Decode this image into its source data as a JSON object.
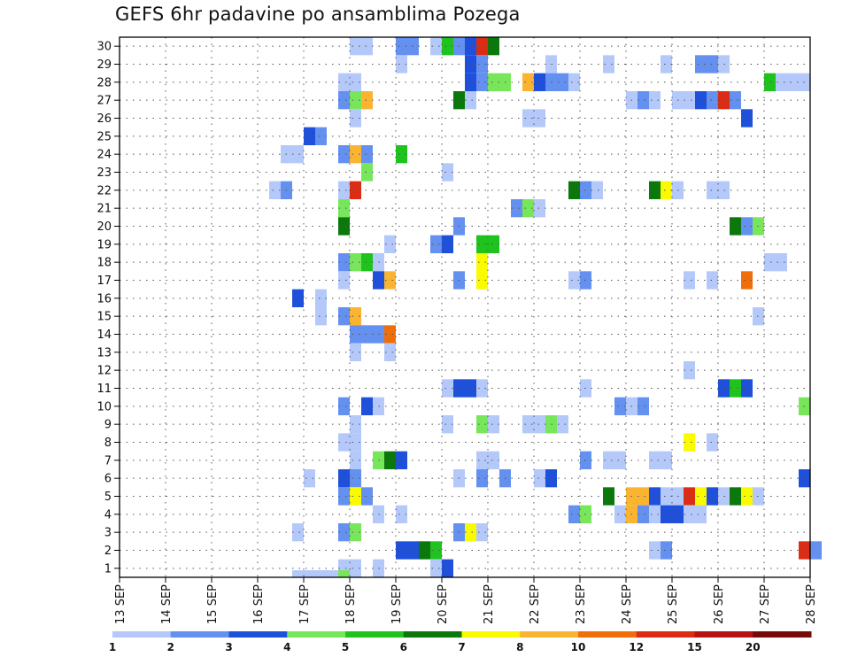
{
  "title": "GEFS 6hr padavine po ansamblima Pozega",
  "chart_data": {
    "type": "heatmap",
    "title": "GEFS 6hr padavine po ansamblima Pozega",
    "x_tick_labels": [
      "13 SEP",
      "14 SEP",
      "15 SEP",
      "16 SEP",
      "17 SEP",
      "18 SEP",
      "19 SEP",
      "20 SEP",
      "21 SEP",
      "22 SEP",
      "23 SEP",
      "24 SEP",
      "25 SEP",
      "26 SEP",
      "27 SEP",
      "28 SEP"
    ],
    "y_tick_labels": [
      "1",
      "2",
      "3",
      "4",
      "5",
      "6",
      "7",
      "8",
      "9",
      "10",
      "11",
      "12",
      "13",
      "14",
      "15",
      "16",
      "17",
      "18",
      "19",
      "20",
      "21",
      "22",
      "23",
      "24",
      "25",
      "26",
      "27",
      "28",
      "29",
      "30"
    ],
    "y_range": [
      1,
      30
    ],
    "x_range": [
      "13 SEP 00Z",
      "28 SEP 00Z"
    ],
    "time_step_hours": 6,
    "grid": true,
    "colorbar": {
      "levels": [
        "1",
        "2",
        "3",
        "4",
        "5",
        "6",
        "7",
        "8",
        "10",
        "12",
        "15",
        "20"
      ],
      "colors": [
        "#b4c8fa",
        "#6490f0",
        "#1e50dc",
        "#78e65a",
        "#1ec31e",
        "#0a780a",
        "#fafa00",
        "#fab432",
        "#f06e0a",
        "#dc2d14",
        "#b41414",
        "#780a0a"
      ]
    },
    "cells_format": "[member, step_from_13SEP00Z, color_index]",
    "cells": [
      [
        30,
        20,
        0
      ],
      [
        30,
        21,
        0
      ],
      [
        30,
        24,
        1
      ],
      [
        30,
        25,
        1
      ],
      [
        30,
        27,
        0
      ],
      [
        30,
        28,
        4
      ],
      [
        30,
        29,
        1
      ],
      [
        30,
        30,
        2
      ],
      [
        30,
        31,
        9
      ],
      [
        30,
        32,
        5
      ],
      [
        29,
        24,
        0
      ],
      [
        29,
        30,
        2
      ],
      [
        29,
        31,
        1
      ],
      [
        29,
        37,
        0
      ],
      [
        29,
        42,
        0
      ],
      [
        29,
        47,
        0
      ],
      [
        29,
        50,
        1
      ],
      [
        29,
        51,
        1
      ],
      [
        29,
        52,
        0
      ],
      [
        28,
        19,
        0
      ],
      [
        28,
        20,
        0
      ],
      [
        28,
        30,
        2
      ],
      [
        28,
        31,
        1
      ],
      [
        28,
        32,
        3
      ],
      [
        28,
        33,
        3
      ],
      [
        28,
        35,
        7
      ],
      [
        28,
        36,
        2
      ],
      [
        28,
        37,
        1
      ],
      [
        28,
        38,
        1
      ],
      [
        28,
        39,
        0
      ],
      [
        28,
        56,
        4
      ],
      [
        28,
        57,
        0
      ],
      [
        28,
        58,
        0
      ],
      [
        28,
        59,
        0
      ],
      [
        27,
        19,
        1
      ],
      [
        27,
        20,
        3
      ],
      [
        27,
        21,
        7
      ],
      [
        27,
        29,
        5
      ],
      [
        27,
        30,
        0
      ],
      [
        27,
        44,
        0
      ],
      [
        27,
        45,
        1
      ],
      [
        27,
        46,
        0
      ],
      [
        27,
        48,
        0
      ],
      [
        27,
        49,
        0
      ],
      [
        27,
        50,
        2
      ],
      [
        27,
        51,
        1
      ],
      [
        27,
        52,
        9
      ],
      [
        27,
        53,
        1
      ],
      [
        26,
        20,
        0
      ],
      [
        26,
        35,
        0
      ],
      [
        26,
        36,
        0
      ],
      [
        26,
        54,
        2
      ],
      [
        25,
        16,
        2
      ],
      [
        25,
        17,
        1
      ],
      [
        24,
        14,
        0
      ],
      [
        24,
        15,
        0
      ],
      [
        24,
        19,
        1
      ],
      [
        24,
        20,
        7
      ],
      [
        24,
        21,
        1
      ],
      [
        24,
        24,
        4
      ],
      [
        23,
        21,
        3
      ],
      [
        23,
        28,
        0
      ],
      [
        22,
        13,
        0
      ],
      [
        22,
        14,
        1
      ],
      [
        22,
        19,
        0
      ],
      [
        22,
        20,
        9
      ],
      [
        22,
        39,
        5
      ],
      [
        22,
        40,
        1
      ],
      [
        22,
        41,
        0
      ],
      [
        22,
        46,
        5
      ],
      [
        22,
        47,
        6
      ],
      [
        22,
        48,
        0
      ],
      [
        22,
        51,
        0
      ],
      [
        22,
        52,
        0
      ],
      [
        21,
        19,
        3
      ],
      [
        21,
        34,
        1
      ],
      [
        21,
        35,
        3
      ],
      [
        21,
        36,
        0
      ],
      [
        20,
        19,
        5
      ],
      [
        20,
        29,
        1
      ],
      [
        20,
        53,
        5
      ],
      [
        20,
        54,
        1
      ],
      [
        20,
        55,
        3
      ],
      [
        19,
        23,
        0
      ],
      [
        19,
        27,
        1
      ],
      [
        19,
        28,
        2
      ],
      [
        19,
        31,
        4
      ],
      [
        19,
        32,
        4
      ],
      [
        18,
        19,
        1
      ],
      [
        18,
        20,
        3
      ],
      [
        18,
        21,
        4
      ],
      [
        18,
        22,
        0
      ],
      [
        18,
        31,
        6
      ],
      [
        18,
        56,
        0
      ],
      [
        18,
        57,
        0
      ],
      [
        17,
        19,
        0
      ],
      [
        17,
        22,
        2
      ],
      [
        17,
        23,
        7
      ],
      [
        17,
        29,
        1
      ],
      [
        17,
        31,
        6
      ],
      [
        17,
        39,
        0
      ],
      [
        17,
        40,
        1
      ],
      [
        17,
        49,
        0
      ],
      [
        17,
        51,
        0
      ],
      [
        17,
        54,
        8
      ],
      [
        16,
        15,
        2
      ],
      [
        16,
        17,
        0
      ],
      [
        15,
        17,
        0
      ],
      [
        15,
        19,
        1
      ],
      [
        15,
        20,
        7
      ],
      [
        15,
        55,
        0
      ],
      [
        14,
        20,
        1
      ],
      [
        14,
        21,
        1
      ],
      [
        14,
        22,
        1
      ],
      [
        14,
        23,
        8
      ],
      [
        13,
        20,
        0
      ],
      [
        13,
        23,
        0
      ],
      [
        12,
        49,
        0
      ],
      [
        11,
        28,
        0
      ],
      [
        11,
        29,
        2
      ],
      [
        11,
        30,
        2
      ],
      [
        11,
        31,
        0
      ],
      [
        11,
        40,
        0
      ],
      [
        11,
        52,
        2
      ],
      [
        11,
        53,
        4
      ],
      [
        11,
        54,
        2
      ],
      [
        10,
        19,
        1
      ],
      [
        10,
        21,
        2
      ],
      [
        10,
        22,
        0
      ],
      [
        10,
        43,
        1
      ],
      [
        10,
        44,
        0
      ],
      [
        10,
        45,
        1
      ],
      [
        10,
        59,
        3
      ],
      [
        9,
        20,
        0
      ],
      [
        9,
        28,
        0
      ],
      [
        9,
        31,
        3
      ],
      [
        9,
        32,
        0
      ],
      [
        9,
        35,
        0
      ],
      [
        9,
        36,
        0
      ],
      [
        9,
        37,
        3
      ],
      [
        9,
        38,
        0
      ],
      [
        8,
        19,
        0
      ],
      [
        8,
        20,
        0
      ],
      [
        8,
        49,
        6
      ],
      [
        8,
        51,
        0
      ],
      [
        7,
        20,
        0
      ],
      [
        7,
        22,
        3
      ],
      [
        7,
        23,
        5
      ],
      [
        7,
        24,
        2
      ],
      [
        7,
        31,
        0
      ],
      [
        7,
        32,
        0
      ],
      [
        7,
        40,
        1
      ],
      [
        7,
        42,
        0
      ],
      [
        7,
        43,
        0
      ],
      [
        7,
        46,
        0
      ],
      [
        7,
        47,
        0
      ],
      [
        6,
        16,
        0
      ],
      [
        6,
        19,
        2
      ],
      [
        6,
        20,
        1
      ],
      [
        6,
        29,
        0
      ],
      [
        6,
        31,
        1
      ],
      [
        6,
        33,
        1
      ],
      [
        6,
        36,
        0
      ],
      [
        6,
        37,
        2
      ],
      [
        6,
        59,
        2
      ],
      [
        5,
        19,
        1
      ],
      [
        5,
        20,
        6
      ],
      [
        5,
        21,
        1
      ],
      [
        5,
        42,
        5
      ],
      [
        5,
        44,
        7
      ],
      [
        5,
        45,
        7
      ],
      [
        5,
        46,
        2
      ],
      [
        5,
        47,
        0
      ],
      [
        5,
        48,
        0
      ],
      [
        5,
        49,
        9
      ],
      [
        5,
        50,
        6
      ],
      [
        5,
        51,
        2
      ],
      [
        5,
        52,
        0
      ],
      [
        5,
        53,
        5
      ],
      [
        5,
        54,
        6
      ],
      [
        5,
        55,
        0
      ],
      [
        4,
        22,
        0
      ],
      [
        4,
        24,
        0
      ],
      [
        4,
        39,
        1
      ],
      [
        4,
        40,
        3
      ],
      [
        4,
        43,
        0
      ],
      [
        4,
        44,
        7
      ],
      [
        4,
        45,
        1
      ],
      [
        4,
        46,
        0
      ],
      [
        4,
        47,
        2
      ],
      [
        4,
        48,
        2
      ],
      [
        4,
        49,
        0
      ],
      [
        4,
        50,
        0
      ],
      [
        3,
        15,
        0
      ],
      [
        3,
        19,
        1
      ],
      [
        3,
        20,
        3
      ],
      [
        3,
        29,
        1
      ],
      [
        3,
        30,
        6
      ],
      [
        3,
        31,
        0
      ],
      [
        2,
        24,
        2
      ],
      [
        2,
        25,
        2
      ],
      [
        2,
        26,
        5
      ],
      [
        2,
        27,
        4
      ],
      [
        2,
        46,
        0
      ],
      [
        2,
        47,
        1
      ],
      [
        2,
        59,
        9
      ],
      [
        2,
        60,
        1
      ],
      [
        1,
        19,
        0
      ],
      [
        1,
        20,
        0
      ],
      [
        1,
        22,
        0
      ],
      [
        1,
        27,
        0
      ],
      [
        1,
        28,
        2
      ],
      [
        0,
        15,
        0
      ],
      [
        0,
        16,
        0
      ],
      [
        0,
        17,
        0
      ],
      [
        0,
        18,
        0
      ],
      [
        0,
        19,
        3
      ]
    ]
  }
}
